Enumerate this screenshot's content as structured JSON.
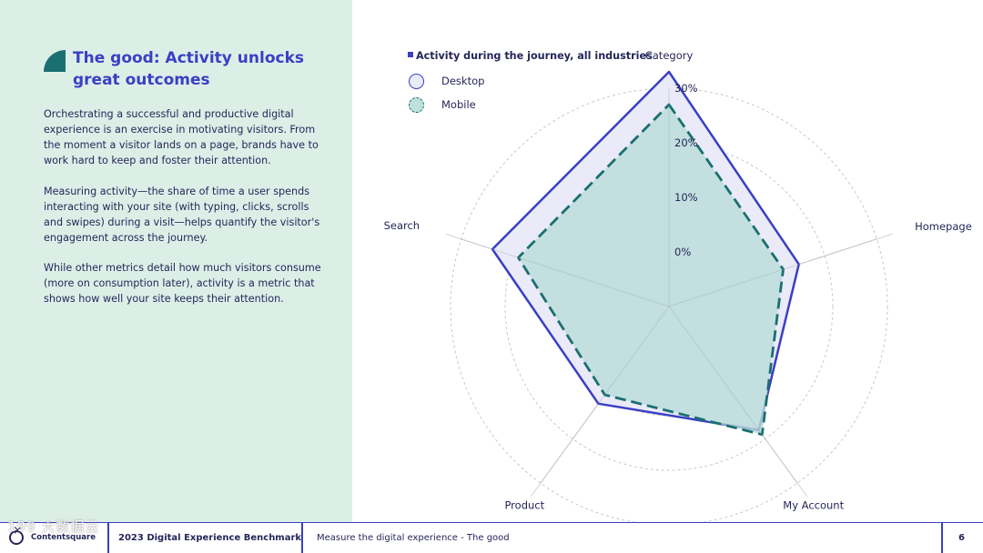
{
  "left": {
    "title": "The good: Activity unlocks great outcomes",
    "paragraphs": [
      "Orchestrating a successful and productive digital experience is an exercise in motivating visitors. From the moment a visitor lands on a page, brands have to work hard to keep and foster their attention.",
      "Measuring activity—the share of time a user spends interacting with your site (with typing, clicks, scrolls and swipes) during a visit—helps quantify the visitor's engagement across the journey.",
      "While other metrics detail how much visitors consume (more on consumption later), activity is a metric that shows how well your site keeps their attention."
    ]
  },
  "chart_data": {
    "type": "radar",
    "title": "Activity during the journey, all industries",
    "axes": [
      "Category",
      "Homepage",
      "My Account",
      "Product",
      "Search"
    ],
    "ticks": [
      "0%",
      "10%",
      "20%",
      "30%"
    ],
    "tick_values": [
      0,
      10,
      20,
      30
    ],
    "range": [
      -10,
      30
    ],
    "legend_position": "top-left",
    "series": [
      {
        "name": "Desktop",
        "values": [
          33,
          15,
          18,
          12,
          24
        ],
        "color": "#3a3fc4",
        "fill": "#e8e8f7",
        "dashed": false
      },
      {
        "name": "Mobile",
        "values": [
          27,
          12,
          19,
          10,
          19
        ],
        "color": "#1a6f70",
        "fill": "#b9dcd8",
        "dashed": true
      }
    ]
  },
  "footer": {
    "logo": "Contentsquare",
    "benchmark": "2023 Digital Experience Benchmark",
    "section": "Measure the digital experience - The good",
    "page": "6"
  },
  "watermark": "199 大数据云"
}
